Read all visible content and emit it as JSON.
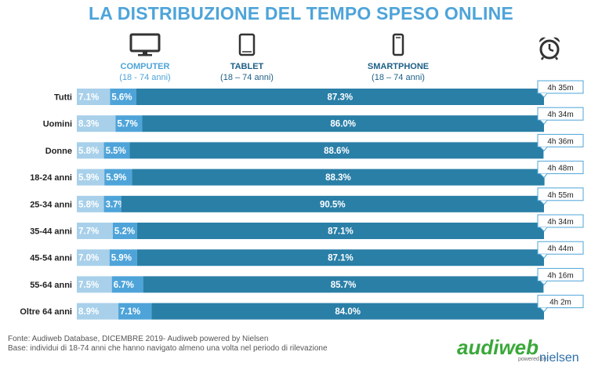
{
  "title": "LA DISTRIBUZIONE DEL TEMPO SPESO ONLINE",
  "devices": {
    "computer": {
      "label": "COMPUTER",
      "range": "(18 - 74 anni)",
      "icon": "monitor-icon"
    },
    "tablet": {
      "label": "TABLET",
      "range": "(18 – 74 anni)",
      "icon": "tablet-icon"
    },
    "smartphone": {
      "label": "SMARTPHONE",
      "range": "(18 – 74 anni)",
      "icon": "smartphone-icon"
    },
    "clock_icon": "alarm-clock-icon"
  },
  "colors": {
    "computer": "#a8d0ea",
    "tablet": "#4ea4d9",
    "smartphone": "#2a7fa7",
    "title": "#4ea4d9"
  },
  "chart_data": {
    "type": "bar",
    "stacked": true,
    "orientation": "horizontal",
    "categories": [
      "Tutti",
      "Uomini",
      "Donne",
      "18-24 anni",
      "25-34 anni",
      "35-44 anni",
      "45-54 anni",
      "55-64 anni",
      "Oltre 64 anni"
    ],
    "series": [
      {
        "name": "COMPUTER",
        "values": [
          7.1,
          8.3,
          5.8,
          5.9,
          5.8,
          7.7,
          7.0,
          7.5,
          8.9
        ],
        "labels": [
          "7.1%",
          "8.3%",
          "5.8%",
          "5.9%",
          "5.8%",
          "7.7%",
          "7.0%",
          "7.5%",
          "8.9%"
        ]
      },
      {
        "name": "TABLET",
        "values": [
          5.6,
          5.7,
          5.5,
          5.9,
          3.7,
          5.2,
          5.9,
          6.7,
          7.1
        ],
        "labels": [
          "5.6%",
          "5.7%",
          "5.5%",
          "5.9%",
          "3.7%",
          "5.2%",
          "5.9%",
          "6.7%",
          "7.1%"
        ]
      },
      {
        "name": "SMARTPHONE",
        "values": [
          87.3,
          86.0,
          88.6,
          88.3,
          90.5,
          87.1,
          87.1,
          85.7,
          84.0
        ],
        "labels": [
          "87.3%",
          "86.0%",
          "88.6%",
          "88.3%",
          "90.5%",
          "87.1%",
          "87.1%",
          "85.7%",
          "84.0%"
        ]
      }
    ],
    "total_time": [
      "4h 35m",
      "4h 34m",
      "4h 36m",
      "4h 48m",
      "4h 55m",
      "4h 34m",
      "4h 44m",
      "4h 16m",
      "4h 2m"
    ],
    "xlim": [
      0,
      100
    ]
  },
  "footer": {
    "source": "Fonte: Audiweb Database, DICEMBRE 2019- Audiweb powered by Nielsen",
    "base": "Base: individui di 18-74 anni che hanno navigato almeno una volta nel periodo di rilevazione"
  },
  "logo": {
    "audiweb": "audiweb",
    "powered_by": "powered by",
    "nielsen": "nielsen"
  }
}
